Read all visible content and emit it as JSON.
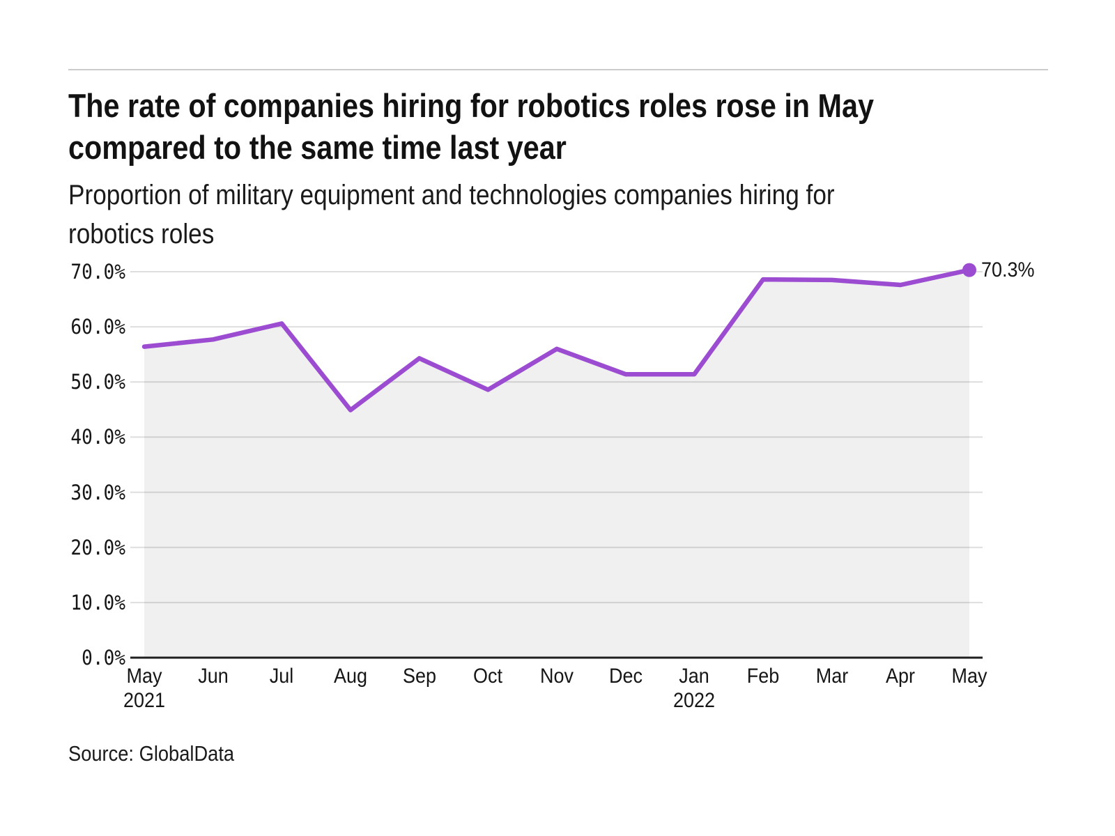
{
  "header": {
    "title_line1": "The rate of companies hiring for robotics roles rose in May",
    "title_line2": "compared to the same time last year",
    "subtitle_line1": "Proportion of military equipment and technologies companies hiring for",
    "subtitle_line2": "robotics roles"
  },
  "footer": {
    "source": "Source: GlobalData"
  },
  "chart_data": {
    "type": "area",
    "title": "The rate of companies hiring for robotics roles rose in May compared to the same time last year",
    "subtitle": "Proportion of military equipment and technologies companies hiring for robotics roles",
    "categories": [
      "May 2021",
      "Jun 2021",
      "Jul 2021",
      "Aug 2021",
      "Sep 2021",
      "Oct 2021",
      "Nov 2021",
      "Dec 2021",
      "Jan 2022",
      "Feb 2022",
      "Mar 2022",
      "Apr 2022",
      "May 2022"
    ],
    "values": [
      56.4,
      57.7,
      60.6,
      44.9,
      54.3,
      48.6,
      56.0,
      51.4,
      51.4,
      68.6,
      68.5,
      67.6,
      70.3
    ],
    "end_label": "70.3%",
    "xlabel": "",
    "ylabel": "",
    "ylim": [
      0,
      70
    ],
    "grid": "horizontal",
    "legend": "none",
    "y_ticks": [
      {
        "label": "70.0%",
        "value": 70
      },
      {
        "label": "60.0%",
        "value": 60
      },
      {
        "label": "50.0%",
        "value": 50
      },
      {
        "label": "40.0%",
        "value": 40
      },
      {
        "label": "30.0%",
        "value": 30
      },
      {
        "label": "20.0%",
        "value": 20
      },
      {
        "label": "10.0%",
        "value": 10
      },
      {
        "label": "0.0%",
        "value": 0
      }
    ],
    "x_tick_months": [
      "May",
      "Jun",
      "Jul",
      "Aug",
      "Sep",
      "Oct",
      "Nov",
      "Dec",
      "Jan",
      "Feb",
      "Mar",
      "Apr",
      "May"
    ],
    "x_tick_years": [
      {
        "index": 0,
        "label": "2021"
      },
      {
        "index": 8,
        "label": "2022"
      }
    ],
    "colors": {
      "line": "#9B4CD1",
      "marker": "#9B4CD1",
      "area": "rgba(0,0,0,0.06)",
      "grid": "#dedede",
      "axis": "#1f1f1f",
      "text": "#161616",
      "rule": "#cbcbcb"
    }
  }
}
